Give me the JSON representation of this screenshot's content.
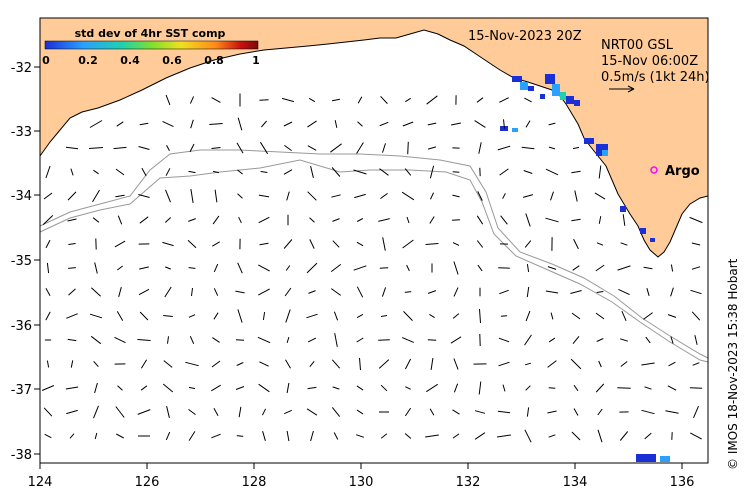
{
  "header": {
    "date": "15-Nov-2023 20Z",
    "product": "NRT00 GSL",
    "analysis_time": "15-Nov 06:00Z",
    "scale_label": "0.5m/s (1kt 24h)"
  },
  "colorbar": {
    "title": "std dev of 4hr SST comp",
    "ticks": [
      "0",
      "0.2",
      "0.4",
      "0.6",
      "0.8",
      "1"
    ],
    "colors": [
      "#1a2fd6",
      "#2aa0ff",
      "#20d0b0",
      "#7de030",
      "#f0e020",
      "#ff8a1a",
      "#c81010",
      "#7a0a0a"
    ]
  },
  "marker": {
    "label": "Argo",
    "color": "#ff00ff"
  },
  "axes": {
    "x_ticks": [
      "124",
      "126",
      "128",
      "130",
      "132",
      "134",
      "136"
    ],
    "y_ticks": [
      "-32",
      "-33",
      "-34",
      "-35",
      "-36",
      "-37",
      "-38"
    ]
  },
  "credit": "© IMOS 18-Nov-2023 15:38 Hobart",
  "colors": {
    "land": "#ffcc99",
    "isobath": "#999999",
    "vector": "#000000"
  }
}
